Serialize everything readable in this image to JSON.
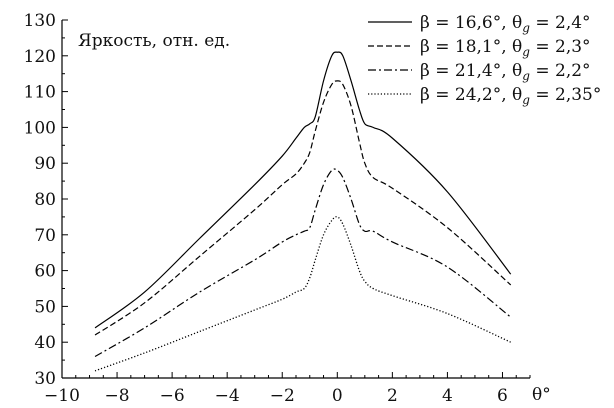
{
  "chart_data": {
    "type": "line",
    "title": "",
    "ylabel": "Яркость, отн. ед.",
    "xlabel": "θ°",
    "xlim": [
      -10,
      7
    ],
    "ylim": [
      30,
      130
    ],
    "xticks": [
      -10,
      -8,
      -6,
      -4,
      -2,
      0,
      2,
      4,
      6
    ],
    "yticks": [
      30,
      40,
      50,
      60,
      70,
      80,
      90,
      100,
      110,
      120,
      130
    ],
    "xtick_labels": [
      "−10",
      "−8",
      "−6",
      "−4",
      "−2",
      "0",
      "2",
      "4",
      "6"
    ],
    "ytick_labels": [
      "30",
      "40",
      "50",
      "60",
      "70",
      "80",
      "90",
      "100",
      "110",
      "120",
      "130"
    ],
    "grid": false,
    "legend_position": "top-right",
    "series": [
      {
        "name": "β = 16,6°, θg = 2,4°",
        "legend": {
          "pre": "β = 16,6°, θ",
          "sub": "g",
          "post": " = 2,4°"
        },
        "style": "solid",
        "color": "#000000",
        "x": [
          -8.8,
          -7,
          -5,
          -3,
          -2,
          -1.5,
          -1.2,
          -1,
          -0.8,
          -0.5,
          -0.2,
          0,
          0.2,
          0.5,
          0.8,
          1,
          1.3,
          2,
          4,
          6.3
        ],
        "y": [
          44,
          54,
          69,
          84,
          92,
          97,
          100,
          101,
          103,
          113,
          120,
          121,
          120,
          113,
          105,
          101,
          100,
          97,
          82,
          59
        ]
      },
      {
        "name": "β = 18,1°, θg = 2,3°",
        "legend": {
          "pre": "β = 18,1°, θ",
          "sub": "g",
          "post": " = 2,3°"
        },
        "style": "dashed",
        "color": "#000000",
        "x": [
          -8.8,
          -7,
          -5,
          -3,
          -2,
          -1.5,
          -1.2,
          -1,
          -0.8,
          -0.5,
          -0.2,
          0,
          0.2,
          0.5,
          0.8,
          1,
          1.3,
          2,
          4,
          6.3
        ],
        "y": [
          42,
          51,
          64,
          77,
          84,
          87,
          90,
          93,
          99,
          107,
          112,
          113,
          112,
          106,
          96,
          90,
          86,
          83,
          72,
          56
        ]
      },
      {
        "name": "β = 21,4°, θg = 2,2°",
        "legend": {
          "pre": "β = 21,4°, θ",
          "sub": "g",
          "post": " = 2,2°"
        },
        "style": "dashdot",
        "color": "#000000",
        "x": [
          -8.8,
          -7,
          -5,
          -3,
          -2,
          -1.5,
          -1.2,
          -1,
          -0.8,
          -0.5,
          -0.2,
          0,
          0.2,
          0.5,
          0.8,
          1,
          1.3,
          2,
          4,
          6.3
        ],
        "y": [
          36,
          44,
          54,
          63,
          68,
          70,
          71,
          72,
          77,
          84,
          88,
          88,
          86,
          80,
          73,
          71,
          71,
          68,
          61,
          47
        ]
      },
      {
        "name": "β = 24,2°, θg = 2,35°",
        "legend": {
          "pre": "β = 24,2°, θ",
          "sub": "g",
          "post": " = 2,35°"
        },
        "style": "dotted",
        "color": "#000000",
        "x": [
          -8.8,
          -7,
          -5,
          -3,
          -2,
          -1.5,
          -1.2,
          -1,
          -0.8,
          -0.5,
          -0.2,
          0,
          0.2,
          0.5,
          0.8,
          1,
          1.3,
          2,
          4,
          6.3
        ],
        "y": [
          32,
          37,
          43,
          49,
          52,
          54,
          55,
          58,
          63,
          70,
          74,
          75,
          73,
          67,
          60,
          57,
          55,
          53,
          48,
          40
        ]
      }
    ]
  }
}
